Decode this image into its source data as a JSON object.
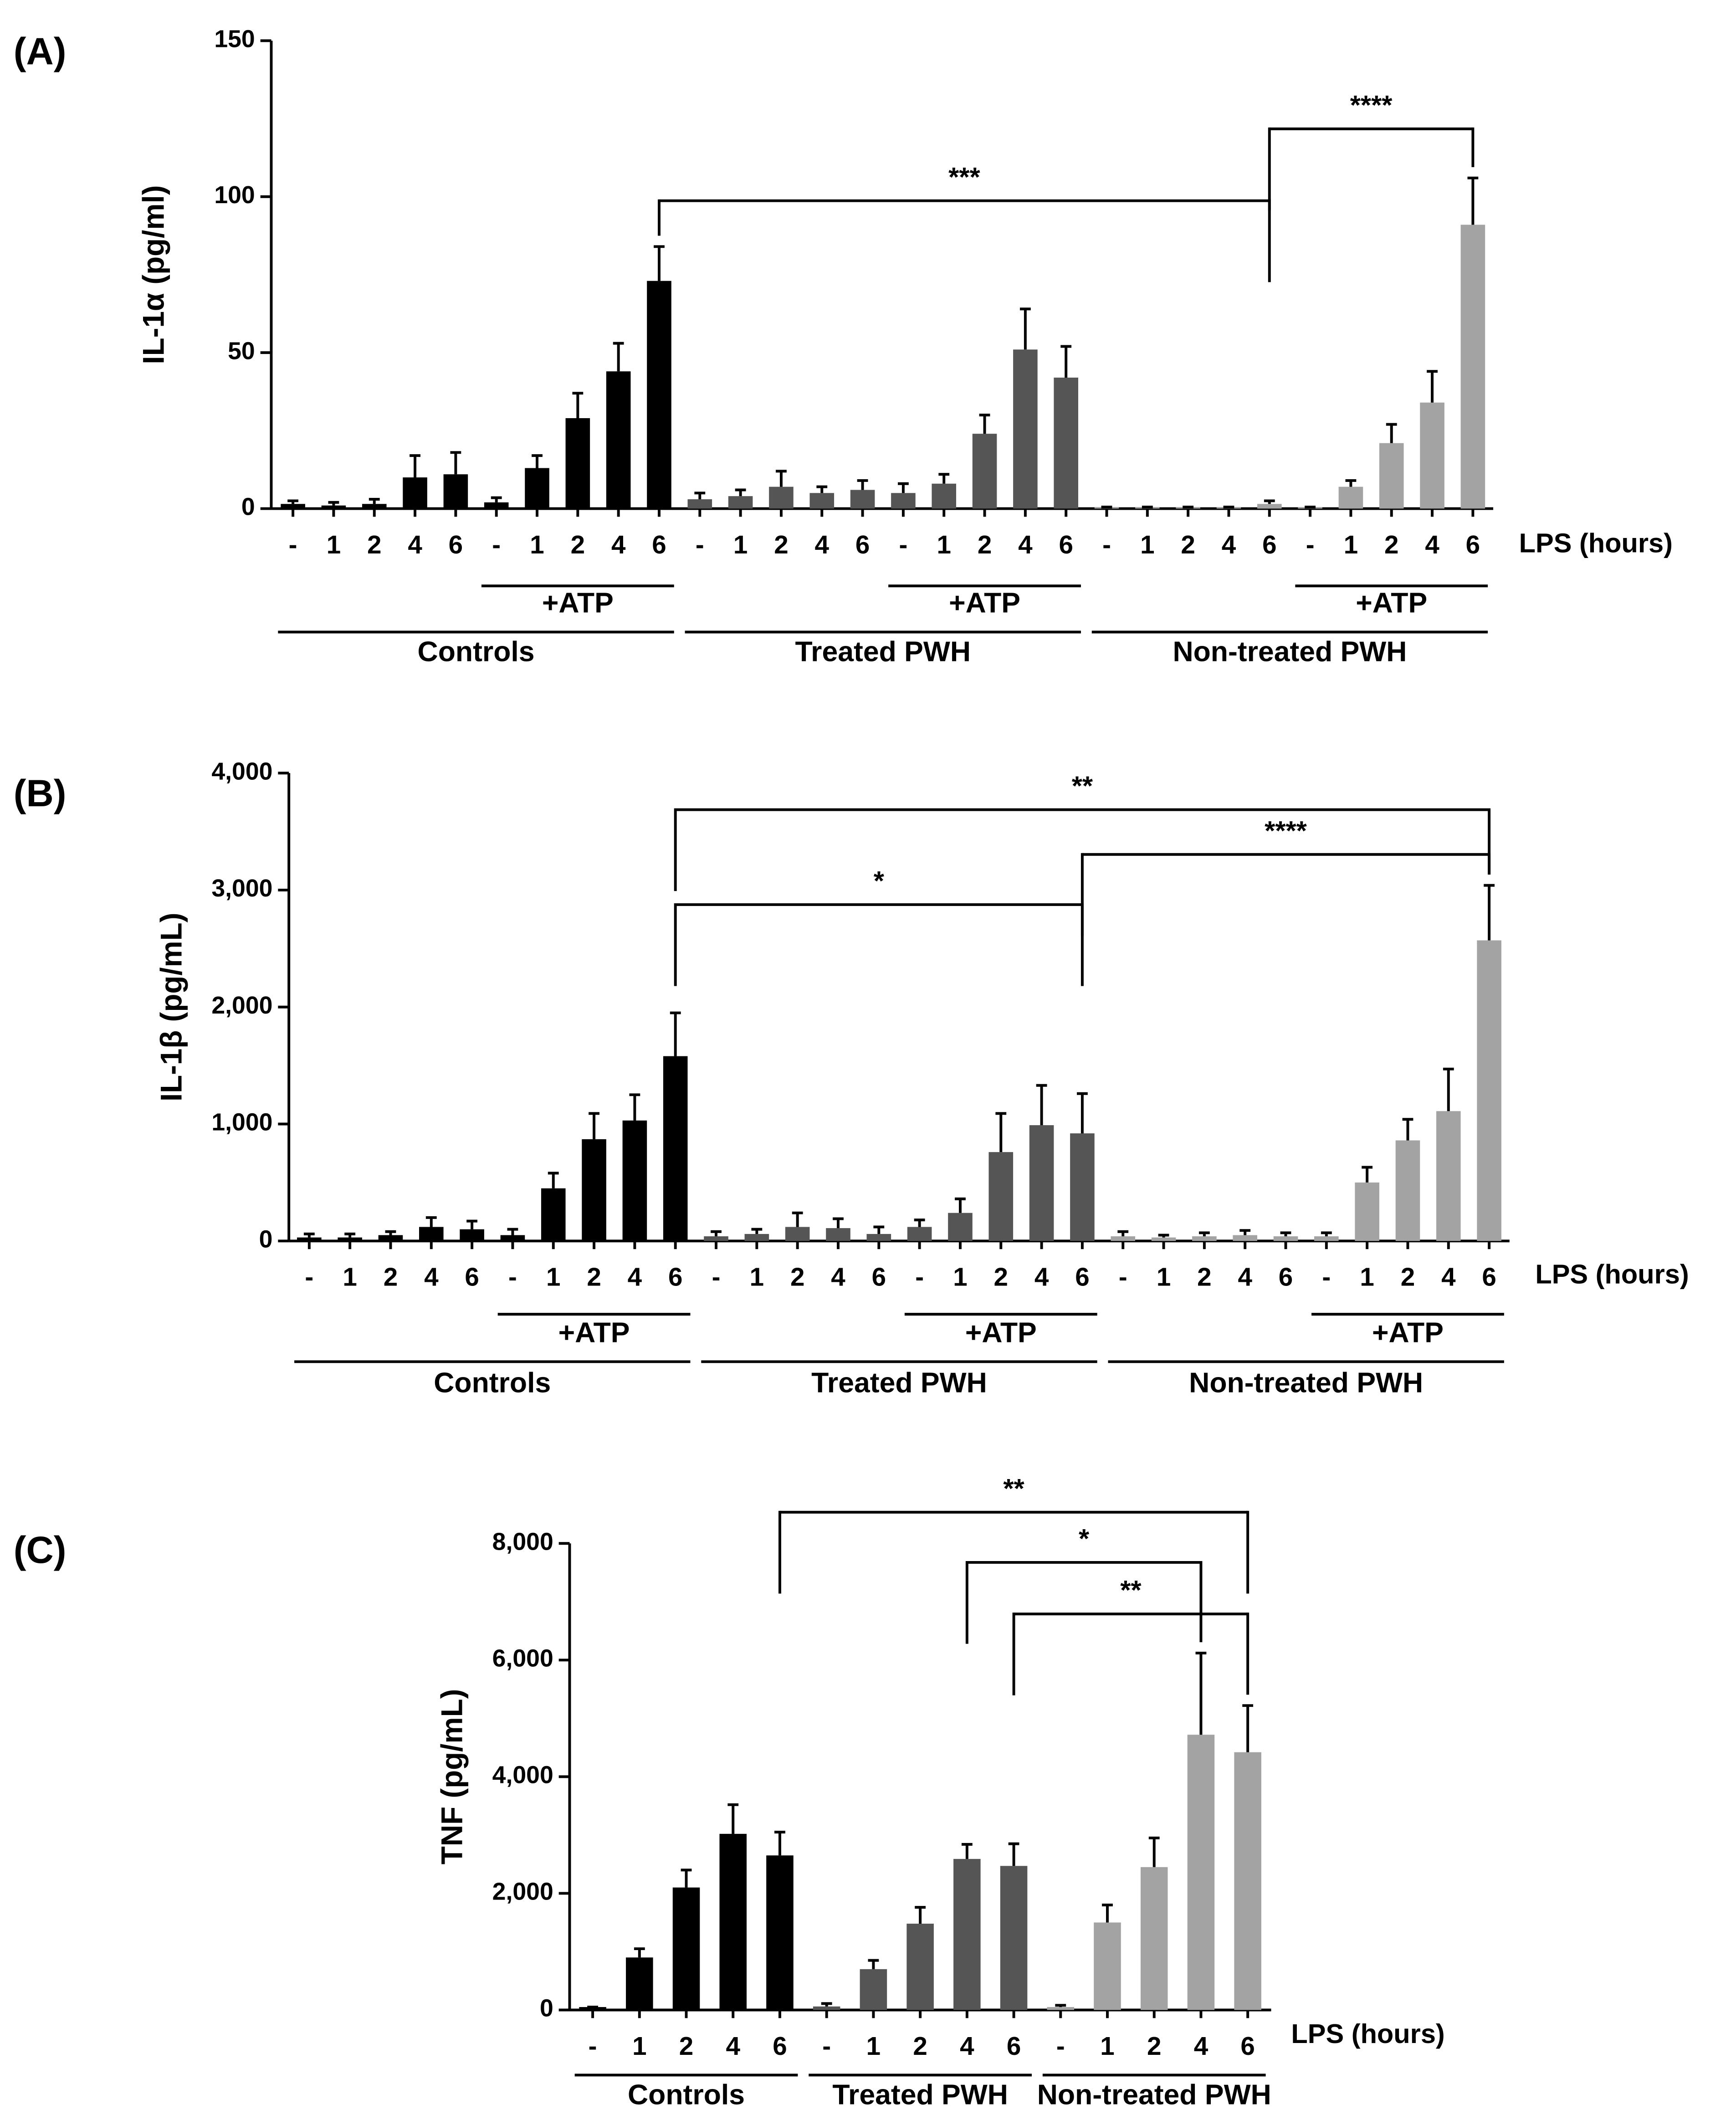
{
  "chart_data": [
    {
      "type": "bar",
      "panel": "(A)",
      "y_label": "IL-1α (pg/ml)",
      "x_label": "LPS (hours)",
      "categories": [
        "-",
        "1",
        "2",
        "4",
        "6",
        "-",
        "1",
        "2",
        "4",
        "6",
        "-",
        "1",
        "2",
        "4",
        "6",
        "-",
        "1",
        "2",
        "4",
        "6",
        "-",
        "1",
        "2",
        "4",
        "6",
        "-",
        "1",
        "2",
        "4",
        "6"
      ],
      "values": [
        1.5,
        1,
        1.5,
        10,
        11,
        2,
        13,
        29,
        44,
        73,
        3,
        4,
        7,
        5,
        6,
        5,
        8,
        24,
        51,
        42,
        0.5,
        0.5,
        0.5,
        0.5,
        1.5,
        0.5,
        7,
        21,
        34,
        91
      ],
      "errors": [
        1,
        1,
        1.5,
        7,
        7,
        1.5,
        4,
        8,
        9,
        11,
        2,
        2,
        5,
        2,
        3,
        3,
        3,
        6,
        13,
        10,
        0,
        0,
        0,
        0,
        1,
        0,
        2,
        6,
        10,
        15
      ],
      "groups": [
        {
          "name": "Controls",
          "color": "#000000"
        },
        {
          "name": "Treated PWH",
          "color": "#555555"
        },
        {
          "name": "Non-treated PWH",
          "color": "#a3a3a3"
        }
      ],
      "sub_label": "+ATP",
      "ylim": [
        0,
        150
      ],
      "yticks": [
        0,
        50,
        100,
        150
      ],
      "significance": [
        {
          "label": "****",
          "from": 24,
          "to": 29
        },
        {
          "label": "***",
          "from": 9,
          "to": 24
        }
      ]
    },
    {
      "type": "bar",
      "panel": "(B)",
      "y_label": "IL-1β (pg/mL)",
      "x_label": "LPS (hours)",
      "categories": [
        "-",
        "1",
        "2",
        "4",
        "6",
        "-",
        "1",
        "2",
        "4",
        "6",
        "-",
        "1",
        "2",
        "4",
        "6",
        "-",
        "1",
        "2",
        "4",
        "6",
        "-",
        "1",
        "2",
        "4",
        "6",
        "-",
        "1",
        "2",
        "4",
        "6"
      ],
      "values": [
        30,
        30,
        50,
        120,
        100,
        50,
        450,
        870,
        1030,
        1580,
        40,
        60,
        120,
        110,
        60,
        120,
        240,
        760,
        990,
        920,
        40,
        30,
        40,
        50,
        40,
        40,
        500,
        860,
        1110,
        2570
      ],
      "errors": [
        30,
        30,
        30,
        80,
        70,
        50,
        130,
        220,
        220,
        370,
        40,
        40,
        120,
        80,
        60,
        60,
        120,
        330,
        340,
        340,
        40,
        20,
        30,
        40,
        30,
        30,
        130,
        180,
        360,
        470
      ],
      "groups": [
        {
          "name": "Controls",
          "color": "#000000"
        },
        {
          "name": "Treated PWH",
          "color": "#555555"
        },
        {
          "name": "Non-treated PWH",
          "color": "#a3a3a3"
        }
      ],
      "sub_label": "+ATP",
      "ylim": [
        0,
        4000
      ],
      "yticks": [
        0,
        {
          "value": 1000,
          "label": "1,000"
        },
        {
          "value": 2000,
          "label": "2,000"
        },
        {
          "value": 3000,
          "label": "3,000"
        },
        {
          "value": 4000,
          "label": "4,000"
        }
      ],
      "significance": [
        {
          "label": "**",
          "from": 9,
          "to": 29
        },
        {
          "label": "****",
          "from": 19,
          "to": 29
        },
        {
          "label": "*",
          "from": 9,
          "to": 19
        }
      ]
    },
    {
      "type": "bar",
      "panel": "(C)",
      "y_label": "TNF (pg/mL)",
      "x_label": "LPS (hours)",
      "categories": [
        "-",
        "1",
        "2",
        "4",
        "6",
        "-",
        "1",
        "2",
        "4",
        "6",
        "-",
        "1",
        "2",
        "4",
        "6"
      ],
      "values": [
        50,
        900,
        2100,
        3020,
        2650,
        60,
        700,
        1480,
        2590,
        2470,
        50,
        1500,
        2450,
        4720,
        4420
      ],
      "errors": [
        0,
        150,
        300,
        500,
        400,
        50,
        150,
        280,
        250,
        380,
        30,
        300,
        500,
        1400,
        800
      ],
      "groups": [
        {
          "name": "Controls",
          "color": "#000000"
        },
        {
          "name": "Treated PWH",
          "color": "#555555"
        },
        {
          "name": "Non-treated PWH",
          "color": "#a3a3a3"
        }
      ],
      "ylim": [
        0,
        8000
      ],
      "yticks": [
        0,
        {
          "value": 2000,
          "label": "2,000"
        },
        {
          "value": 4000,
          "label": "4,000"
        },
        {
          "value": 6000,
          "label": "6,000"
        },
        {
          "value": 8000,
          "label": "8,000"
        }
      ],
      "significance": [
        {
          "label": "**",
          "from": 4,
          "to": 14
        },
        {
          "label": "*",
          "from": 8,
          "to": 13
        },
        {
          "label": "**",
          "from": 9,
          "to": 14
        }
      ]
    }
  ]
}
